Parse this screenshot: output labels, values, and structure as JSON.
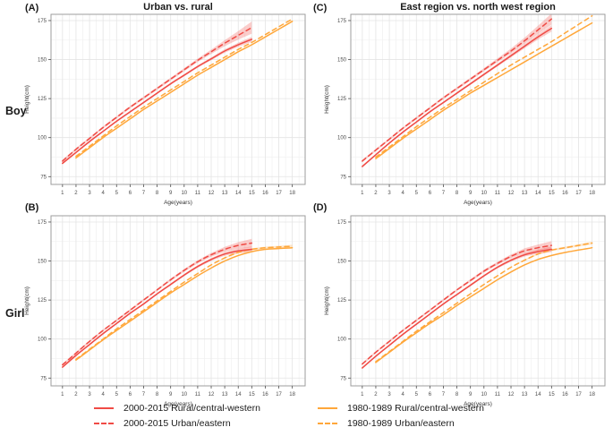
{
  "figure": {
    "row_labels": [
      "Boy",
      "Girl"
    ],
    "colors": {
      "red": "#f04b45",
      "orange": "#ffa73a",
      "ribbon_opacity": 0.28,
      "grid_major": "#e4e4e4",
      "grid_minor": "#f2f2f2",
      "panel_border": "#9e9e9e",
      "tick_text": "#4d4d4d",
      "axis_title_text": "#333333"
    },
    "legend": [
      {
        "label": "2000-2015 Rural/central-western",
        "color": "#f04b45",
        "dash": false
      },
      {
        "label": "2000-2015 Urban/eastern",
        "color": "#f04b45",
        "dash": true
      },
      {
        "label": "1980-1989 Rural/central-western",
        "color": "#ffa73a",
        "dash": false
      },
      {
        "label": "1980-1989 Urban/eastern",
        "color": "#ffa73a",
        "dash": true
      }
    ]
  },
  "chart_data": [
    {
      "id": "A",
      "panel_label": "(A)",
      "title": "Urban vs. rural",
      "row": "Boy",
      "type": "line",
      "xlabel": "Age(years)",
      "ylabel": "Height(cm)",
      "xticks": [
        1,
        2,
        3,
        4,
        5,
        6,
        7,
        8,
        9,
        10,
        11,
        12,
        13,
        14,
        15,
        16,
        17,
        18
      ],
      "yticks": [
        75,
        100,
        125,
        150,
        175
      ],
      "xlim": [
        0.15,
        18.95
      ],
      "ylim": [
        70,
        179
      ],
      "grid": true,
      "series": [
        {
          "name": "1980-1989 Rural/central-western",
          "color": "#ffa73a",
          "dash": false,
          "x": [
            2,
            3,
            4,
            5,
            6,
            7,
            8,
            9,
            10,
            11,
            12,
            13,
            14,
            15,
            16,
            17,
            18
          ],
          "y": [
            87,
            93.5,
            100,
            106,
            112,
            118,
            123.5,
            129,
            134.5,
            140,
            145,
            150,
            155,
            159.5,
            164.5,
            169.5,
            174.5
          ]
        },
        {
          "name": "1980-1989 Urban/eastern",
          "color": "#ffa73a",
          "dash": true,
          "x": [
            2,
            3,
            4,
            5,
            6,
            7,
            8,
            9,
            10,
            11,
            12,
            13,
            14,
            15,
            16,
            17,
            18
          ],
          "y": [
            88,
            94.5,
            101,
            107.5,
            113.5,
            119.5,
            125,
            130.5,
            136,
            141.5,
            146.5,
            151.5,
            156.5,
            161,
            166,
            171,
            176
          ]
        },
        {
          "name": "2000-2015 Rural/central-western",
          "color": "#f04b45",
          "dash": false,
          "x": [
            1,
            2,
            3,
            4,
            5,
            6,
            7,
            8,
            9,
            10,
            11,
            12,
            13,
            14,
            15
          ],
          "y": [
            83.5,
            90.5,
            97.5,
            104,
            110.5,
            116.5,
            122.5,
            128.5,
            134.5,
            140,
            145.5,
            150.5,
            155.5,
            159.5,
            163
          ],
          "ci": [
            0.6,
            0.6,
            0.6,
            0.6,
            0.6,
            0.6,
            0.6,
            0.6,
            0.7,
            0.7,
            0.8,
            0.9,
            1.1,
            1.3,
            1.6
          ]
        },
        {
          "name": "2000-2015 Urban/eastern",
          "color": "#f04b45",
          "dash": true,
          "x": [
            1,
            2,
            3,
            4,
            5,
            6,
            7,
            8,
            9,
            10,
            11,
            12,
            13,
            14,
            15
          ],
          "y": [
            85,
            92.5,
            99.5,
            106.5,
            113,
            119.5,
            125.5,
            131.5,
            137.5,
            143.5,
            149.5,
            155,
            160.5,
            165.5,
            170.5
          ],
          "ci": [
            0.8,
            0.8,
            0.8,
            0.8,
            0.8,
            0.8,
            0.8,
            0.8,
            0.9,
            1,
            1.1,
            1.4,
            1.9,
            2.7,
            3.9
          ]
        }
      ]
    },
    {
      "id": "B",
      "panel_label": "(B)",
      "title": "",
      "row": "Girl",
      "type": "line",
      "xlabel": "Age(years)",
      "ylabel": "Height(cm)",
      "xticks": [
        1,
        2,
        3,
        4,
        5,
        6,
        7,
        8,
        9,
        10,
        11,
        12,
        13,
        14,
        15,
        16,
        17,
        18
      ],
      "yticks": [
        75,
        100,
        125,
        150,
        175
      ],
      "xlim": [
        0.15,
        18.95
      ],
      "ylim": [
        70,
        179
      ],
      "grid": true,
      "series": [
        {
          "name": "1980-1989 Rural/central-western",
          "color": "#ffa73a",
          "dash": false,
          "x": [
            2,
            3,
            4,
            5,
            6,
            7,
            8,
            9,
            10,
            11,
            12,
            13,
            14,
            15,
            16,
            17,
            18
          ],
          "y": [
            86.5,
            93,
            99.5,
            105.5,
            111.5,
            117.5,
            123.5,
            129.5,
            135,
            140.5,
            145.5,
            150,
            153.5,
            156,
            157.5,
            158,
            158.5
          ]
        },
        {
          "name": "1980-1989 Urban/eastern",
          "color": "#ffa73a",
          "dash": true,
          "x": [
            2,
            3,
            4,
            5,
            6,
            7,
            8,
            9,
            10,
            11,
            12,
            13,
            14,
            15,
            16,
            17,
            18
          ],
          "y": [
            87,
            93.5,
            100,
            106.5,
            112.5,
            118.5,
            124.5,
            130.5,
            136.5,
            142,
            147.5,
            152,
            155.5,
            157.5,
            158.5,
            159,
            159.5
          ],
          "ci": [
            0,
            0,
            0,
            0,
            0,
            0,
            0,
            0,
            0,
            0,
            0,
            0.4,
            0.5,
            0.6,
            0.7,
            0.8,
            0.9
          ]
        },
        {
          "name": "2000-2015 Rural/central-western",
          "color": "#f04b45",
          "dash": false,
          "x": [
            1,
            2,
            3,
            4,
            5,
            6,
            7,
            8,
            9,
            10,
            11,
            12,
            13,
            14,
            15
          ],
          "y": [
            82,
            89.5,
            96.5,
            103.5,
            110,
            116.5,
            122.5,
            129,
            135,
            141,
            146.5,
            151,
            154.5,
            156.5,
            157.5
          ],
          "ci": [
            0.6,
            0.6,
            0.6,
            0.6,
            0.6,
            0.6,
            0.6,
            0.6,
            0.7,
            0.7,
            0.8,
            0.9,
            1.1,
            1.4,
            1.8
          ]
        },
        {
          "name": "2000-2015 Urban/eastern",
          "color": "#f04b45",
          "dash": true,
          "x": [
            1,
            2,
            3,
            4,
            5,
            6,
            7,
            8,
            9,
            10,
            11,
            12,
            13,
            14,
            15
          ],
          "y": [
            83.5,
            91,
            98.5,
            105.5,
            112,
            118.5,
            125,
            131.5,
            138,
            144,
            149.5,
            154,
            157.5,
            160,
            161.5
          ],
          "ci": [
            0.7,
            0.7,
            0.7,
            0.7,
            0.7,
            0.7,
            0.7,
            0.7,
            0.8,
            0.9,
            1,
            1.2,
            1.6,
            2.1,
            2.7
          ]
        }
      ]
    },
    {
      "id": "C",
      "panel_label": "(C)",
      "title": "East region vs. north west region",
      "row": "Boy",
      "type": "line",
      "xlabel": "Age(years)",
      "ylabel": "Height(cm)",
      "xticks": [
        1,
        2,
        3,
        4,
        5,
        6,
        7,
        8,
        9,
        10,
        11,
        12,
        13,
        14,
        15,
        16,
        17,
        18
      ],
      "yticks": [
        75,
        100,
        125,
        150,
        175
      ],
      "xlim": [
        0.15,
        18.95
      ],
      "ylim": [
        70,
        179
      ],
      "grid": true,
      "series": [
        {
          "name": "1980-1989 Rural/central-western",
          "color": "#ffa73a",
          "dash": false,
          "x": [
            2,
            3,
            4,
            5,
            6,
            7,
            8,
            9,
            10,
            11,
            12,
            13,
            14,
            15,
            16,
            17,
            18
          ],
          "y": [
            86.5,
            93,
            99.5,
            105.5,
            111.5,
            117.5,
            123,
            128.5,
            133.5,
            138.5,
            143.5,
            148.5,
            153.5,
            158.5,
            163.5,
            168.5,
            173.5
          ]
        },
        {
          "name": "1980-1989 Urban/eastern",
          "color": "#ffa73a",
          "dash": true,
          "x": [
            2,
            3,
            4,
            5,
            6,
            7,
            8,
            9,
            10,
            11,
            12,
            13,
            14,
            15,
            16,
            17,
            18
          ],
          "y": [
            87.5,
            94,
            100.5,
            107,
            113,
            119,
            124.5,
            130,
            135.5,
            141,
            146.5,
            151.5,
            156.5,
            161.5,
            167,
            172.5,
            178
          ]
        },
        {
          "name": "2000-2015 Rural/central-western",
          "color": "#f04b45",
          "dash": false,
          "x": [
            1,
            2,
            3,
            4,
            5,
            6,
            7,
            8,
            9,
            10,
            11,
            12,
            13,
            14,
            15
          ],
          "y": [
            81.5,
            89,
            96.5,
            103.5,
            110,
            116.5,
            122.5,
            128.5,
            134.5,
            140.5,
            146.5,
            152.5,
            158.5,
            164.5,
            170
          ],
          "ci": [
            0.6,
            0.6,
            0.6,
            0.6,
            0.6,
            0.6,
            0.6,
            0.7,
            0.7,
            0.8,
            0.9,
            1.1,
            1.3,
            1.6,
            2
          ]
        },
        {
          "name": "2000-2015 Urban/eastern",
          "color": "#f04b45",
          "dash": true,
          "x": [
            1,
            2,
            3,
            4,
            5,
            6,
            7,
            8,
            9,
            10,
            11,
            12,
            13,
            14,
            15
          ],
          "y": [
            85,
            92,
            99,
            106,
            112.5,
            119,
            125.5,
            131.5,
            137.5,
            143.5,
            149.5,
            155.5,
            162,
            169,
            176
          ],
          "ci": [
            0.8,
            0.8,
            0.8,
            0.8,
            0.8,
            0.8,
            0.8,
            0.8,
            0.9,
            1,
            1.2,
            1.5,
            2,
            2.7,
            3.6
          ]
        }
      ]
    },
    {
      "id": "D",
      "panel_label": "(D)",
      "title": "",
      "row": "Girl",
      "type": "line",
      "xlabel": "Age(years)",
      "ylabel": "Height(cm)",
      "xticks": [
        1,
        2,
        3,
        4,
        5,
        6,
        7,
        8,
        9,
        10,
        11,
        12,
        13,
        14,
        15,
        16,
        17,
        18
      ],
      "yticks": [
        75,
        100,
        125,
        150,
        175
      ],
      "xlim": [
        0.15,
        18.95
      ],
      "ylim": [
        70,
        179
      ],
      "grid": true,
      "series": [
        {
          "name": "1980-1989 Rural/central-western",
          "color": "#ffa73a",
          "dash": false,
          "x": [
            2,
            3,
            4,
            5,
            6,
            7,
            8,
            9,
            10,
            11,
            12,
            13,
            14,
            15,
            16,
            17,
            18
          ],
          "y": [
            85,
            91.5,
            98,
            104,
            110,
            115.5,
            121.5,
            127,
            132.5,
            138,
            143,
            147.5,
            151,
            153.5,
            155.5,
            157,
            158.5
          ]
        },
        {
          "name": "1980-1989 Urban/eastern",
          "color": "#ffa73a",
          "dash": true,
          "x": [
            2,
            3,
            4,
            5,
            6,
            7,
            8,
            9,
            10,
            11,
            12,
            13,
            14,
            15,
            16,
            17,
            18
          ],
          "y": [
            85.5,
            92,
            98.5,
            105,
            111,
            117,
            123,
            129,
            135,
            140.5,
            146,
            150.5,
            154.5,
            157,
            158.5,
            160,
            161.5
          ],
          "ci": [
            0,
            0,
            0,
            0,
            0,
            0,
            0,
            0,
            0,
            0,
            0,
            0.4,
            0.5,
            0.6,
            0.7,
            0.8,
            0.9
          ]
        },
        {
          "name": "2000-2015 Rural/central-western",
          "color": "#f04b45",
          "dash": false,
          "x": [
            1,
            2,
            3,
            4,
            5,
            6,
            7,
            8,
            9,
            10,
            11,
            12,
            13,
            14,
            15
          ],
          "y": [
            81.5,
            89,
            96,
            103,
            109.5,
            116,
            122.5,
            128.5,
            134.5,
            140.5,
            146,
            150.5,
            154,
            156,
            157.5
          ],
          "ci": [
            0.6,
            0.6,
            0.6,
            0.6,
            0.6,
            0.6,
            0.6,
            0.6,
            0.7,
            0.7,
            0.8,
            0.9,
            1.1,
            1.4,
            1.8
          ]
        },
        {
          "name": "2000-2015 Urban/eastern",
          "color": "#f04b45",
          "dash": true,
          "x": [
            1,
            2,
            3,
            4,
            5,
            6,
            7,
            8,
            9,
            10,
            11,
            12,
            13,
            14,
            15
          ],
          "y": [
            84,
            91.5,
            98.5,
            105.5,
            112,
            118.5,
            125,
            131.5,
            137.5,
            143.5,
            148.5,
            153,
            156.5,
            158.5,
            160
          ],
          "ci": [
            0.7,
            0.7,
            0.7,
            0.7,
            0.7,
            0.7,
            0.7,
            0.7,
            0.8,
            0.9,
            1,
            1.2,
            1.6,
            2.1,
            2.7
          ]
        }
      ]
    }
  ]
}
